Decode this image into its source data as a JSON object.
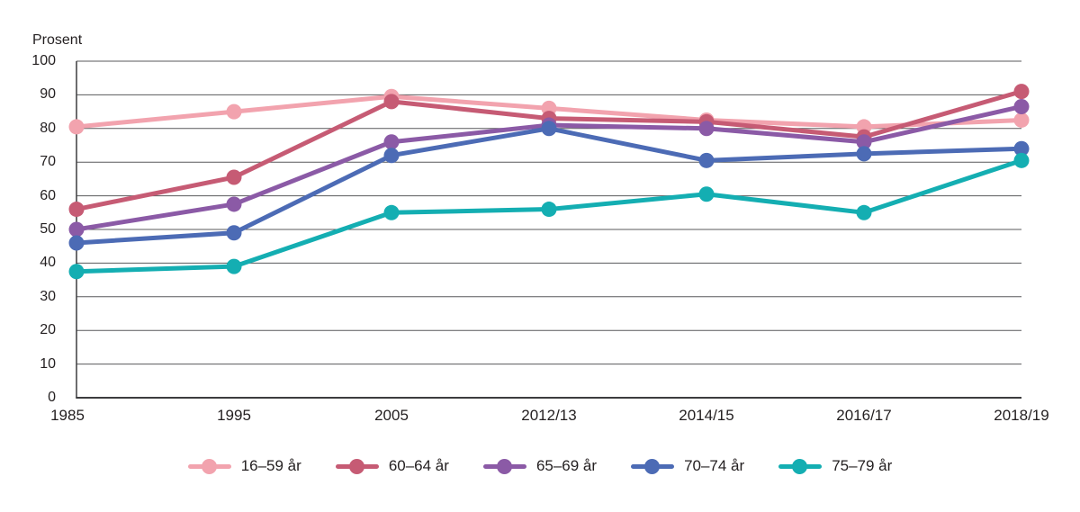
{
  "chart_data": {
    "type": "line",
    "title": "",
    "ylabel": "Prosent",
    "xlabel": "",
    "categories": [
      "1985",
      "1995",
      "2005",
      "2012/13",
      "2014/15",
      "2016/17",
      "2018/19"
    ],
    "series": [
      {
        "name": "16–59 år",
        "color": "#f2a3ae",
        "values": [
          80.5,
          85,
          89.5,
          86,
          82.5,
          80.5,
          82.5
        ]
      },
      {
        "name": "60–64 år",
        "color": "#c65b74",
        "values": [
          56,
          65.5,
          88,
          83,
          82,
          77.5,
          91
        ]
      },
      {
        "name": "65–69 år",
        "color": "#8b5aa6",
        "values": [
          50,
          57.5,
          76,
          81,
          80,
          76,
          86.5
        ]
      },
      {
        "name": "70–74 år",
        "color": "#4c6bb5",
        "values": [
          46,
          49,
          72,
          80,
          70.5,
          72.5,
          74
        ]
      },
      {
        "name": "75–79 år",
        "color": "#14aeb2",
        "values": [
          37.5,
          39,
          55,
          56,
          60.5,
          55,
          70.5
        ]
      }
    ],
    "ylim": [
      0,
      100
    ],
    "ytick_step": 10,
    "grid": "horizontal",
    "legend_position": "bottom",
    "colors": {
      "gridline": "#58595b",
      "axis": "#3c3c3e",
      "text": "#231f20",
      "background": "#ffffff"
    }
  }
}
